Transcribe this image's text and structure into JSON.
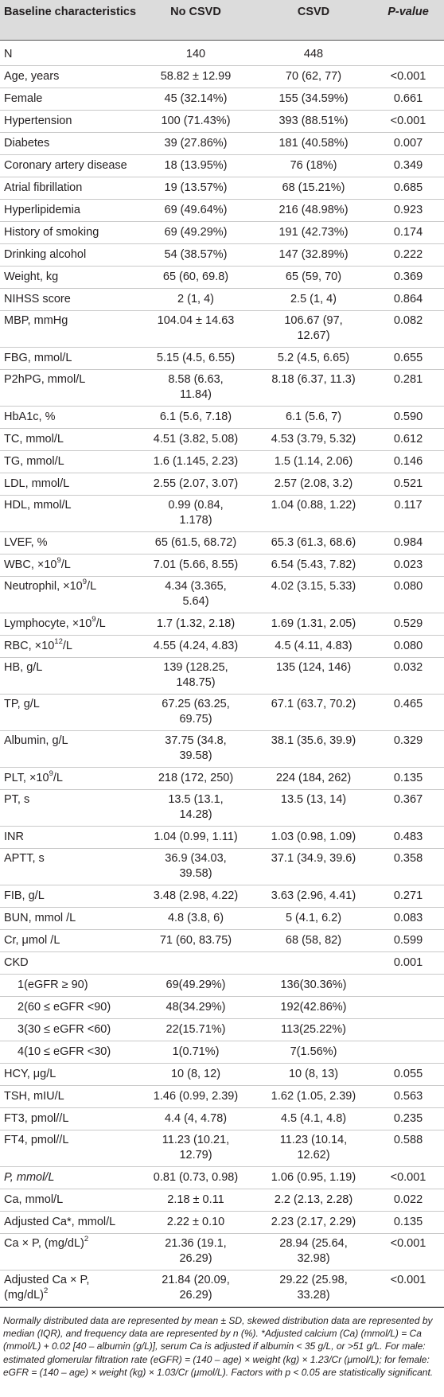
{
  "table": {
    "headers": {
      "col1": "Baseline characteristics",
      "col2": "No CSVD",
      "col3": "CSVD",
      "col4": "P-value"
    },
    "rows": [
      {
        "label": "N",
        "no_csvd": "140",
        "csvd": "448",
        "p": ""
      },
      {
        "label": "Age, years",
        "no_csvd": "58.82 ± 12.99",
        "csvd": "70 (62, 77)",
        "p": "<0.001"
      },
      {
        "label": "Female",
        "no_csvd": "45 (32.14%)",
        "csvd": "155 (34.59%)",
        "p": "0.661"
      },
      {
        "label": "Hypertension",
        "no_csvd": "100 (71.43%)",
        "csvd": "393 (88.51%)",
        "p": "<0.001"
      },
      {
        "label": "Diabetes",
        "no_csvd": "39 (27.86%)",
        "csvd": "181 (40.58%)",
        "p": "0.007"
      },
      {
        "label": "Coronary artery disease",
        "no_csvd": "18 (13.95%)",
        "csvd": "76 (18%)",
        "p": "0.349"
      },
      {
        "label": "Atrial fibrillation",
        "no_csvd": "19 (13.57%)",
        "csvd": "68 (15.21%)",
        "p": "0.685"
      },
      {
        "label": "Hyperlipidemia",
        "no_csvd": "69 (49.64%)",
        "csvd": "216 (48.98%)",
        "p": "0.923"
      },
      {
        "label": "History of smoking",
        "no_csvd": "69 (49.29%)",
        "csvd": "191 (42.73%)",
        "p": "0.174"
      },
      {
        "label": "Drinking alcohol",
        "no_csvd": "54 (38.57%)",
        "csvd": "147 (32.89%)",
        "p": "0.222"
      },
      {
        "label": "Weight, kg",
        "no_csvd": "65 (60, 69.8)",
        "csvd": "65 (59, 70)",
        "p": "0.369"
      },
      {
        "label": "NIHSS score",
        "no_csvd": "2 (1, 4)",
        "csvd": "2.5 (1, 4)",
        "p": "0.864"
      },
      {
        "label": "MBP, mmHg",
        "no_csvd": "104.04 ± 14.63",
        "csvd": "106.67 (97,\n12.67)",
        "p": "0.082"
      },
      {
        "label": "FBG, mmol/L",
        "no_csvd": "5.15 (4.5, 6.55)",
        "csvd": "5.2 (4.5, 6.65)",
        "p": "0.655"
      },
      {
        "label": "P2hPG, mmol/L",
        "no_csvd": "8.58 (6.63,\n11.84)",
        "csvd": "8.18 (6.37, 11.3)",
        "p": "0.281"
      },
      {
        "label": "HbA1c, %",
        "no_csvd": "6.1 (5.6, 7.18)",
        "csvd": "6.1 (5.6, 7)",
        "p": "0.590"
      },
      {
        "label": "TC, mmol/L",
        "no_csvd": "4.51 (3.82, 5.08)",
        "csvd": "4.53 (3.79, 5.32)",
        "p": "0.612"
      },
      {
        "label": "TG, mmol/L",
        "no_csvd": "1.6 (1.145, 2.23)",
        "csvd": "1.5 (1.14, 2.06)",
        "p": "0.146"
      },
      {
        "label": "LDL, mmol/L",
        "no_csvd": "2.55 (2.07, 3.07)",
        "csvd": "2.57 (2.08, 3.2)",
        "p": "0.521"
      },
      {
        "label": "HDL, mmol/L",
        "no_csvd": "0.99 (0.84,\n1.178)",
        "csvd": "1.04 (0.88, 1.22)",
        "p": "0.117"
      },
      {
        "label": "LVEF, %",
        "no_csvd": "65 (61.5, 68.72)",
        "csvd": "65.3 (61.3, 68.6)",
        "p": "0.984"
      },
      {
        "label": "WBC, ×10",
        "sup": "9",
        "suffix": "/L",
        "no_csvd": "7.01 (5.66, 8.55)",
        "csvd": "6.54 (5.43, 7.82)",
        "p": "0.023"
      },
      {
        "label": "Neutrophil, ×10",
        "sup": "9",
        "suffix": "/L",
        "no_csvd": "4.34 (3.365,\n5.64)",
        "csvd": "4.02 (3.15, 5.33)",
        "p": "0.080"
      },
      {
        "label": "Lymphocyte, ×10",
        "sup": "9",
        "suffix": "/L",
        "no_csvd": "1.7 (1.32, 2.18)",
        "csvd": "1.69 (1.31, 2.05)",
        "p": "0.529"
      },
      {
        "label": "RBC, ×10",
        "sup": "12",
        "suffix": "/L",
        "no_csvd": "4.55 (4.24, 4.83)",
        "csvd": "4.5 (4.11, 4.83)",
        "p": "0.080"
      },
      {
        "label": "HB, g/L",
        "no_csvd": "139 (128.25,\n148.75)",
        "csvd": "135 (124, 146)",
        "p": "0.032"
      },
      {
        "label": "TP, g/L",
        "no_csvd": "67.25 (63.25,\n69.75)",
        "csvd": "67.1 (63.7, 70.2)",
        "p": "0.465"
      },
      {
        "label": "Albumin, g/L",
        "no_csvd": "37.75 (34.8,\n39.58)",
        "csvd": "38.1 (35.6, 39.9)",
        "p": "0.329"
      },
      {
        "label": "PLT, ×10",
        "sup": "9",
        "suffix": "/L",
        "no_csvd": "218 (172, 250)",
        "csvd": "224 (184, 262)",
        "p": "0.135"
      },
      {
        "label": "PT, s",
        "no_csvd": "13.5 (13.1,\n14.28)",
        "csvd": "13.5 (13, 14)",
        "p": "0.367"
      },
      {
        "label": "INR",
        "no_csvd": "1.04 (0.99, 1.11)",
        "csvd": "1.03 (0.98, 1.09)",
        "p": "0.483"
      },
      {
        "label": "APTT, s",
        "no_csvd": "36.9 (34.03,\n39.58)",
        "csvd": "37.1 (34.9, 39.6)",
        "p": "0.358"
      },
      {
        "label": "FIB, g/L",
        "no_csvd": "3.48 (2.98, 4.22)",
        "csvd": "3.63 (2.96, 4.41)",
        "p": "0.271"
      },
      {
        "label": "BUN, mmol /L",
        "no_csvd": "4.8 (3.8, 6)",
        "csvd": "5 (4.1, 6.2)",
        "p": "0.083"
      },
      {
        "label": "Cr, μmol /L",
        "no_csvd": "71 (60, 83.75)",
        "csvd": "68 (58, 82)",
        "p": "0.599"
      },
      {
        "label": "CKD",
        "no_csvd": "",
        "csvd": "",
        "p": "0.001"
      },
      {
        "label": "1(eGFR ≥ 90)",
        "indent": true,
        "no_csvd": "69(49.29%)",
        "csvd": "136(30.36%)",
        "p": ""
      },
      {
        "label": "2(60 ≤ eGFR <90)",
        "indent": true,
        "no_csvd": "48(34.29%)",
        "csvd": "192(42.86%)",
        "p": ""
      },
      {
        "label": "3(30 ≤ eGFR <60)",
        "indent": true,
        "no_csvd": "22(15.71%)",
        "csvd": "113(25.22%)",
        "p": ""
      },
      {
        "label": "4(10 ≤ eGFR <30)",
        "indent": true,
        "no_csvd": "1(0.71%)",
        "csvd": "7(1.56%)",
        "p": ""
      },
      {
        "label": "HCY, μg/L",
        "no_csvd": "10 (8, 12)",
        "csvd": "10 (8, 13)",
        "p": "0.055"
      },
      {
        "label": "TSH, mIU/L",
        "no_csvd": "1.46 (0.99, 2.39)",
        "csvd": "1.62 (1.05, 2.39)",
        "p": "0.563"
      },
      {
        "label": "FT3, pmol//L",
        "no_csvd": "4.4 (4, 4.78)",
        "csvd": "4.5 (4.1, 4.8)",
        "p": "0.235"
      },
      {
        "label": "FT4, pmol//L",
        "no_csvd": "11.23 (10.21,\n12.79)",
        "csvd": "11.23 (10.14,\n12.62)",
        "p": "0.588"
      },
      {
        "label": "P, mmol/L",
        "italic": true,
        "no_csvd": "0.81 (0.73, 0.98)",
        "csvd": "1.06 (0.95, 1.19)",
        "p": "<0.001"
      },
      {
        "label": "Ca, mmol/L",
        "no_csvd": "2.18 ± 0.11",
        "csvd": "2.2 (2.13, 2.28)",
        "p": "0.022"
      },
      {
        "label": "Adjusted Ca*, mmol/L",
        "no_csvd": "2.22 ± 0.10",
        "csvd": "2.23 (2.17, 2.29)",
        "p": "0.135"
      },
      {
        "label": "Ca × P, (mg/dL)",
        "sup": "2",
        "suffix": "",
        "no_csvd": "21.36 (19.1,\n26.29)",
        "csvd": "28.94 (25.64,\n32.98)",
        "p": "<0.001"
      },
      {
        "label": "Adjusted Ca × P,\n(mg/dL)",
        "sup": "2",
        "suffix": "",
        "no_csvd": "21.84 (20.09,\n26.29)",
        "csvd": "29.22 (25.98,\n33.28)",
        "p": "<0.001"
      }
    ]
  },
  "footnote": "Normally distributed data are represented by mean ± SD, skewed distribution data are represented by median (IQR), and frequency data are represented by n (%). *Adjusted calcium (Ca) (mmol/L) = Ca (mmol/L) + 0.02 [40 – albumin (g/L)], serum Ca is adjusted if albumin < 35 g/L, or >51 g/L. For male: estimated glomerular filtration rate (eGFR) = (140 – age) × weight (kg) × 1.23/Cr (μmol/L); for female: eGFR = (140 – age) × weight (kg) × 1.03/Cr (μmol/L). Factors with p < 0.05 are statistically significant."
}
